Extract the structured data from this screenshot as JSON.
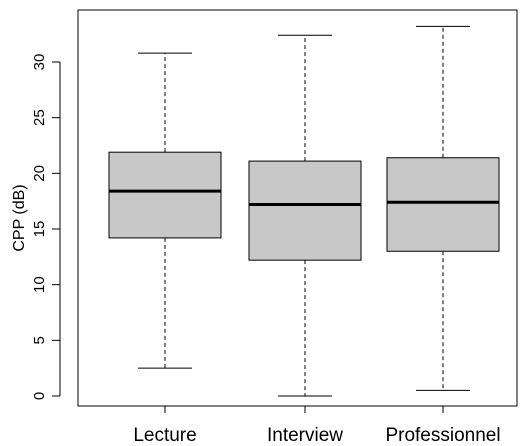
{
  "chart_data": {
    "type": "boxplot",
    "ylabel": "CPP (dB)",
    "xlabel": "",
    "title": "",
    "ylim": [
      -1,
      34
    ],
    "yticks": [
      0,
      5,
      10,
      15,
      20,
      25,
      30
    ],
    "categories": [
      "Lecture",
      "Interview",
      "Professionnel"
    ],
    "boxes": [
      {
        "category": "Lecture",
        "min": 2.5,
        "q1": 14.2,
        "median": 18.4,
        "q3": 21.9,
        "max": 30.8
      },
      {
        "category": "Interview",
        "min": 0.0,
        "q1": 12.2,
        "median": 17.2,
        "q3": 21.1,
        "max": 32.4
      },
      {
        "category": "Professionnel",
        "min": 0.5,
        "q1": 13.0,
        "median": 17.4,
        "q3": 21.4,
        "max": 33.2
      }
    ],
    "colors": {
      "box_fill": "#c8c8c8",
      "stroke": "#000000"
    },
    "grid": false,
    "legend": "none"
  }
}
